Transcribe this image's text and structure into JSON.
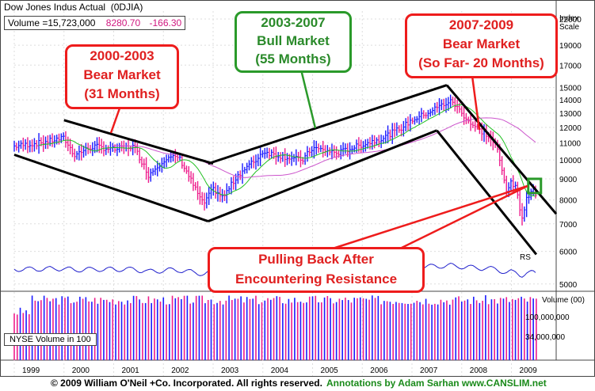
{
  "header": {
    "title": "Dow Jones Indus Actual",
    "symbol": "(0DJIA)",
    "volume_label": "Volume =15,723,000",
    "price": "8280.70",
    "change": "-166.30",
    "scale_label": "Index Scale"
  },
  "callouts": {
    "bear1_period": "2000-2003",
    "bear1_type": "Bear Market",
    "bear1_duration": "(31 Months)",
    "bull_period": "2003-2007",
    "bull_type": "Bull Market",
    "bull_duration": "(55 Months)",
    "bear2_period": "2007-2009",
    "bear2_type": "Bear Market",
    "bear2_duration": "(So Far- 20 Months)",
    "resistance_line1": "Pulling Back After",
    "resistance_line2": "Encountering Resistance"
  },
  "rs_label": "RS",
  "volume_panel": {
    "title": "Volume (00)",
    "tick_100m": "100,000,000",
    "tick_34m": "34,000,000",
    "legend": "NYSE Volume in 100"
  },
  "footer": {
    "copyright": "© 2009 William O'Neil +Co. Incorporated. All rights reserved.",
    "annotations": "Annotations by Adam Sarhan www.CANSLIM.net"
  },
  "colors": {
    "up": "#1a1aff",
    "down": "#ee1c8c",
    "ma_short": "#22c022",
    "ma_long": "#cc55cc",
    "rs_line": "#2020cc",
    "callout_red": "#ee1c1c",
    "callout_green": "#2a9a2a"
  },
  "chart_data": {
    "type": "ohlc",
    "scale": "log",
    "price_axis_ticks": [
      5000,
      6000,
      7000,
      8000,
      9000,
      10000,
      11000,
      12000,
      13000,
      14000,
      15000,
      17000,
      19000,
      22000
    ],
    "year_labels": [
      "1999",
      "2000",
      "2001",
      "2002",
      "2003",
      "2004",
      "2005",
      "2006",
      "2007",
      "2008",
      "2009"
    ],
    "price_path": [
      [
        1999.0,
        10800
      ],
      [
        1999.5,
        11000
      ],
      [
        2000.0,
        11300
      ],
      [
        2000.2,
        10300
      ],
      [
        2000.6,
        10800
      ],
      [
        2001.0,
        10600
      ],
      [
        2001.4,
        10800
      ],
      [
        2001.7,
        9200
      ],
      [
        2002.0,
        10000
      ],
      [
        2002.3,
        10200
      ],
      [
        2002.6,
        8700
      ],
      [
        2002.8,
        7800
      ],
      [
        2003.0,
        8500
      ],
      [
        2003.2,
        8100
      ],
      [
        2003.5,
        9200
      ],
      [
        2003.9,
        10100
      ],
      [
        2004.0,
        10500
      ],
      [
        2004.4,
        10200
      ],
      [
        2004.8,
        10000
      ],
      [
        2005.0,
        10700
      ],
      [
        2005.5,
        10400
      ],
      [
        2005.8,
        10700
      ],
      [
        2006.0,
        10900
      ],
      [
        2006.4,
        11300
      ],
      [
        2006.8,
        12000
      ],
      [
        2007.0,
        12500
      ],
      [
        2007.3,
        13000
      ],
      [
        2007.6,
        13600
      ],
      [
        2007.8,
        13900
      ],
      [
        2008.0,
        13000
      ],
      [
        2008.2,
        12200
      ],
      [
        2008.5,
        11500
      ],
      [
        2008.7,
        10800
      ],
      [
        2008.8,
        9500
      ],
      [
        2008.9,
        8500
      ],
      [
        2009.0,
        8800
      ],
      [
        2009.1,
        8500
      ],
      [
        2009.2,
        7200
      ],
      [
        2009.3,
        8000
      ],
      [
        2009.4,
        8500
      ],
      [
        2009.5,
        8280
      ]
    ],
    "trendlines": [
      {
        "name": "2000-2003 upper",
        "points": [
          [
            2000.0,
            12500
          ],
          [
            2003.0,
            9800
          ]
        ]
      },
      {
        "name": "2000-2003 lower",
        "points": [
          [
            1999.0,
            10300
          ],
          [
            2002.9,
            7100
          ]
        ]
      },
      {
        "name": "2003-2007 upper",
        "points": [
          [
            2002.9,
            9800
          ],
          [
            2007.7,
            15200
          ]
        ]
      },
      {
        "name": "2003-2007 lower",
        "points": [
          [
            2002.9,
            7100
          ],
          [
            2007.5,
            11800
          ]
        ]
      },
      {
        "name": "2007-2009 upper",
        "points": [
          [
            2007.7,
            15200
          ],
          [
            2009.9,
            7400
          ]
        ]
      },
      {
        "name": "2007-2009 lower",
        "points": [
          [
            2007.5,
            11800
          ],
          [
            2009.5,
            5900
          ]
        ]
      }
    ],
    "resistance_box": [
      2009.45,
      8650
    ],
    "ylim": [
      4800,
      23000
    ]
  }
}
